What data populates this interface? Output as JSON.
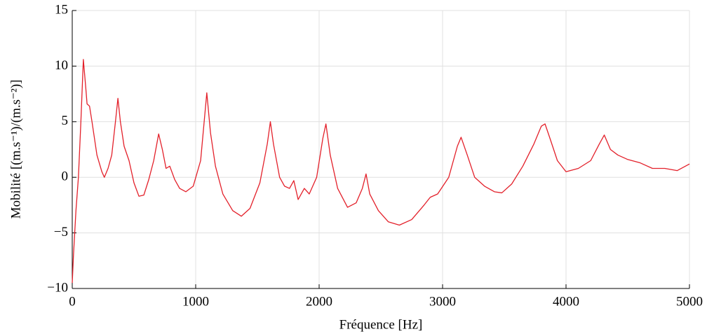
{
  "chart_data": {
    "type": "line",
    "xlabel": "Fréquence [Hz]",
    "ylabel": "Mobilité [(m.s⁻¹)/(m.s⁻²)]",
    "x": [
      0,
      10,
      30,
      50,
      70,
      90,
      110,
      120,
      140,
      160,
      200,
      240,
      260,
      290,
      320,
      350,
      370,
      390,
      420,
      460,
      500,
      540,
      580,
      620,
      660,
      700,
      730,
      760,
      790,
      830,
      870,
      920,
      980,
      1040,
      1090,
      1120,
      1160,
      1220,
      1300,
      1370,
      1440,
      1520,
      1580,
      1605,
      1630,
      1680,
      1720,
      1760,
      1795,
      1830,
      1880,
      1920,
      1980,
      2030,
      2055,
      2090,
      2150,
      2230,
      2300,
      2350,
      2380,
      2410,
      2480,
      2560,
      2650,
      2750,
      2850,
      2900,
      2960,
      3050,
      3120,
      3150,
      3200,
      3260,
      3340,
      3420,
      3480,
      3560,
      3650,
      3740,
      3800,
      3830,
      3870,
      3930,
      4000,
      4100,
      4200,
      4270,
      4310,
      4360,
      4420,
      4500,
      4600,
      4700,
      4800,
      4900,
      5000
    ],
    "values": [
      -9.5,
      -7,
      -3,
      0,
      5,
      10.6,
      8,
      6.6,
      6.4,
      5,
      2,
      0.5,
      0,
      0.8,
      2,
      5,
      7.1,
      5,
      2.8,
      1.5,
      -0.5,
      -1.7,
      -1.6,
      -0.2,
      1.5,
      3.9,
      2.5,
      0.8,
      1.0,
      -0.2,
      -1,
      -1.3,
      -0.8,
      1.5,
      7.6,
      4,
      1,
      -1.5,
      -3,
      -3.5,
      -2.8,
      -0.5,
      3,
      5,
      3,
      0,
      -0.8,
      -1,
      -0.3,
      -2,
      -1,
      -1.5,
      0,
      3.5,
      4.8,
      2,
      -1,
      -2.7,
      -2.3,
      -1,
      0.3,
      -1.5,
      -3,
      -4,
      -4.3,
      -3.8,
      -2.5,
      -1.8,
      -1.5,
      0,
      2.8,
      3.6,
      2,
      0,
      -0.8,
      -1.3,
      -1.4,
      -0.6,
      1,
      3,
      4.6,
      4.8,
      3.5,
      1.5,
      0.5,
      0.8,
      1.5,
      3,
      3.8,
      2.5,
      2,
      1.6,
      1.3,
      0.8,
      0.8,
      0.6,
      1.2
    ],
    "color": "#e3202a",
    "xlim": [
      0,
      5000
    ],
    "xticks": [
      0,
      1000,
      2000,
      3000,
      4000,
      5000
    ],
    "ylim": [
      -10,
      15
    ],
    "yticks": [
      {
        "value": -10,
        "label": "−10"
      },
      {
        "value": -5,
        "label": "−5"
      },
      0,
      5,
      10,
      15
    ],
    "grid": true
  }
}
